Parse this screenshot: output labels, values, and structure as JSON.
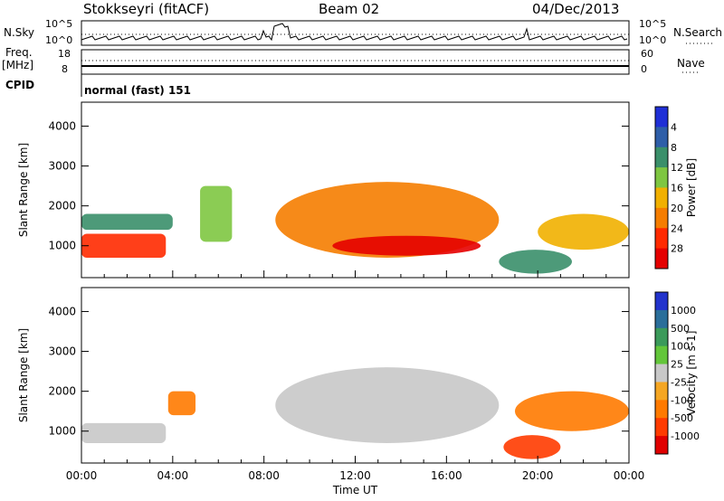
{
  "header": {
    "station": "Stokkseyri (fitACF)",
    "beam": "Beam 02",
    "date": "04/Dec/2013"
  },
  "noise_panel": {
    "left_label": "N.Sky",
    "right_label": "N.Search",
    "tick_top": "10^5",
    "tick_bottom": "10^0"
  },
  "freq_panel": {
    "label_line1": "Freq.",
    "label_line2": "[MHz]",
    "left_tick_top": "18",
    "left_tick_bottom": "8",
    "right_label": "Nave",
    "right_tick_top": "60",
    "right_tick_bottom": "0"
  },
  "cpid": {
    "label": "CPID",
    "value": "normal (fast) 151"
  },
  "chart_data": [
    {
      "type": "heatmap",
      "panel": "power",
      "ylabel": "Slant Range [km]",
      "ylim": [
        200,
        4600
      ],
      "yticks": [
        "1000",
        "2000",
        "3000",
        "4000"
      ],
      "xlim_hours": [
        0,
        24
      ],
      "colorbar": {
        "label": "Power [dB]",
        "ticks": [
          "4",
          "8",
          "12",
          "16",
          "20",
          "24",
          "28"
        ],
        "colors": [
          "#1f2fd6",
          "#2e5ea8",
          "#3a8f6a",
          "#7ec641",
          "#f1b000",
          "#f57d00",
          "#ff2a00",
          "#e50000"
        ]
      },
      "regions": [
        {
          "t0": 0.0,
          "t1": 3.7,
          "r0": 700,
          "r1": 1300,
          "level": 24
        },
        {
          "t0": 0.0,
          "t1": 4.0,
          "r0": 1400,
          "r1": 1800,
          "level": 8
        },
        {
          "t0": 5.2,
          "t1": 6.6,
          "r0": 1100,
          "r1": 2500,
          "level": 14
        },
        {
          "t0": 8.5,
          "t1": 18.3,
          "r0": 700,
          "r1": 2600,
          "level": 20
        },
        {
          "t0": 11.0,
          "t1": 17.5,
          "r0": 750,
          "r1": 1250,
          "level": 28
        },
        {
          "t0": 18.3,
          "t1": 21.5,
          "r0": 300,
          "r1": 900,
          "level": 8
        },
        {
          "t0": 20.0,
          "t1": 24.0,
          "r0": 900,
          "r1": 1800,
          "level": 16
        }
      ]
    },
    {
      "type": "heatmap",
      "panel": "velocity",
      "ylabel": "Slant Range [km]",
      "xlabel": "Time UT",
      "ylim": [
        200,
        4600
      ],
      "yticks": [
        "1000",
        "2000",
        "3000",
        "4000"
      ],
      "xticks": [
        "00:00",
        "04:00",
        "08:00",
        "12:00",
        "16:00",
        "20:00",
        "00:00"
      ],
      "xlim_hours": [
        0,
        24
      ],
      "colorbar": {
        "label": "Velocity [m s-1]",
        "ticks": [
          "1000",
          "500",
          "100",
          "25",
          "-25",
          "-100",
          "-500",
          "-1000"
        ],
        "colors": [
          "#2233cc",
          "#2a6e9a",
          "#3b9a5a",
          "#63c63a",
          "#c8c8c8",
          "#f5a623",
          "#ff7a00",
          "#ff3b00",
          "#e00000"
        ]
      },
      "regions": [
        {
          "t0": 0.0,
          "t1": 3.7,
          "r0": 700,
          "r1": 1200,
          "level": 0
        },
        {
          "t0": 3.8,
          "t1": 5.0,
          "r0": 1400,
          "r1": 2000,
          "level": -100
        },
        {
          "t0": 8.5,
          "t1": 18.3,
          "r0": 700,
          "r1": 2600,
          "level": 0
        },
        {
          "t0": 18.5,
          "t1": 21.0,
          "r0": 300,
          "r1": 900,
          "level": -300
        },
        {
          "t0": 19.0,
          "t1": 24.0,
          "r0": 1000,
          "r1": 2000,
          "level": -100
        }
      ]
    }
  ]
}
